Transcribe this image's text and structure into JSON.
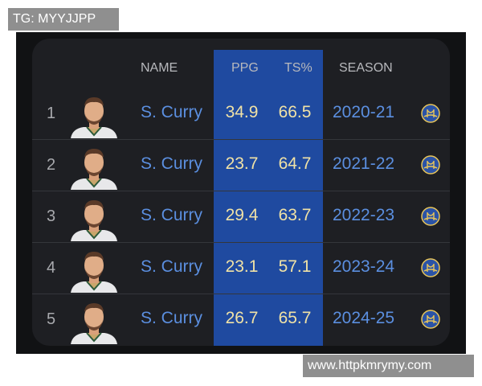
{
  "watermarks": {
    "top": "TG: MYYJJPP",
    "bottom": "www.httpkmrymy.com"
  },
  "headers": {
    "name": "NAME",
    "ppg": "PPG",
    "ts": "TS%",
    "season": "SEASON"
  },
  "colors": {
    "highlight_column": "#1f4aa0",
    "name_text": "#5b8fe0",
    "stat_text": "#f0e2a6"
  },
  "rows": [
    {
      "rank": "1",
      "name": "S. Curry",
      "ppg": "34.9",
      "ts": "66.5",
      "season": "2020-21",
      "icon": "warriors-logo-icon"
    },
    {
      "rank": "2",
      "name": "S. Curry",
      "ppg": "23.7",
      "ts": "64.7",
      "season": "2021-22",
      "icon": "warriors-logo-icon"
    },
    {
      "rank": "3",
      "name": "S. Curry",
      "ppg": "29.4",
      "ts": "63.7",
      "season": "2022-23",
      "icon": "warriors-logo-icon"
    },
    {
      "rank": "4",
      "name": "S. Curry",
      "ppg": "23.1",
      "ts": "57.1",
      "season": "2023-24",
      "icon": "warriors-logo-icon"
    },
    {
      "rank": "5",
      "name": "S. Curry",
      "ppg": "26.7",
      "ts": "65.7",
      "season": "2024-25",
      "icon": "warriors-logo-icon"
    }
  ]
}
